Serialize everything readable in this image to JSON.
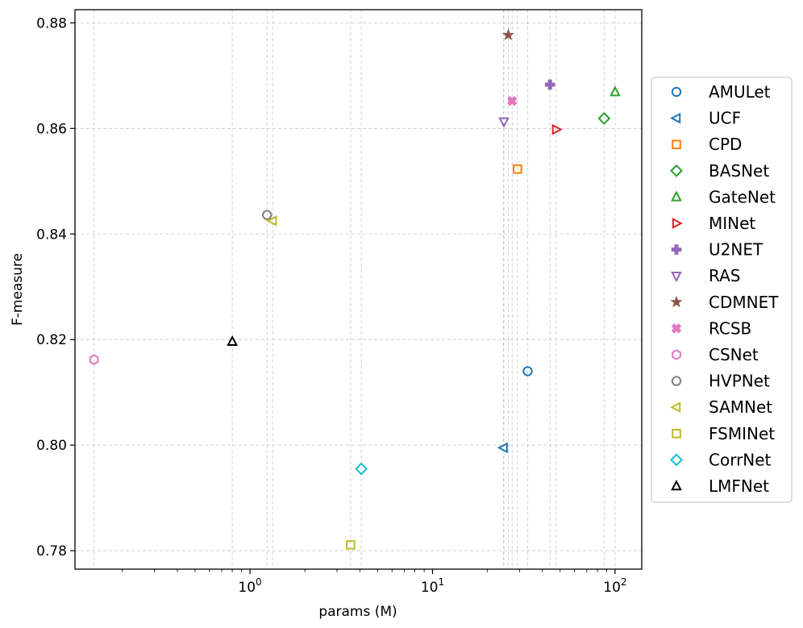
{
  "chart_data": {
    "type": "scatter",
    "title": "",
    "xlabel": "params (M)",
    "ylabel": "F-measure",
    "xscale": "log",
    "xlim": [
      0.11,
      140
    ],
    "ylim": [
      0.7765,
      0.8825
    ],
    "xticks": [
      {
        "value": 1,
        "base": "10",
        "exp": "0"
      },
      {
        "value": 10,
        "base": "10",
        "exp": "1"
      },
      {
        "value": 100,
        "base": "10",
        "exp": "2"
      }
    ],
    "yticks": [
      {
        "value": 0.78,
        "label": "0.78"
      },
      {
        "value": 0.8,
        "label": "0.80"
      },
      {
        "value": 0.82,
        "label": "0.82"
      },
      {
        "value": 0.84,
        "label": "0.84"
      },
      {
        "value": 0.86,
        "label": "0.86"
      },
      {
        "value": 0.88,
        "label": "0.88"
      }
    ],
    "grid": true,
    "legend_position": "right",
    "series": [
      {
        "name": "AMULet",
        "x": 33.2,
        "y": 0.814,
        "marker": "circle",
        "color": "#1f77b4"
      },
      {
        "name": "UCF",
        "x": 24.5,
        "y": 0.7995,
        "marker": "triangle-left",
        "color": "#1f77b4"
      },
      {
        "name": "CPD",
        "x": 29.2,
        "y": 0.8523,
        "marker": "square",
        "color": "#ff7f0e"
      },
      {
        "name": "BASNet",
        "x": 87.1,
        "y": 0.8619,
        "marker": "diamond",
        "color": "#2ca02c"
      },
      {
        "name": "GateNet",
        "x": 100.0,
        "y": 0.8669,
        "marker": "triangle-up",
        "color": "#2ca02c"
      },
      {
        "name": "MINet",
        "x": 47.6,
        "y": 0.8598,
        "marker": "triangle-right",
        "color": "#d62728"
      },
      {
        "name": "U2NET",
        "x": 44.0,
        "y": 0.8683,
        "marker": "plus",
        "color": "#9467bd"
      },
      {
        "name": "RAS",
        "x": 24.6,
        "y": 0.8613,
        "marker": "triangle-down",
        "color": "#9467bd"
      },
      {
        "name": "CDMNET",
        "x": 26.0,
        "y": 0.8777,
        "marker": "star",
        "color": "#8c564b"
      },
      {
        "name": "RCSB",
        "x": 27.3,
        "y": 0.8652,
        "marker": "x-plus",
        "color": "#e377c2"
      },
      {
        "name": "CSNet",
        "x": 0.14,
        "y": 0.8162,
        "marker": "hexagon",
        "color": "#e377c2"
      },
      {
        "name": "HVPNet",
        "x": 1.24,
        "y": 0.8436,
        "marker": "circle",
        "color": "#7f7f7f"
      },
      {
        "name": "SAMNet",
        "x": 1.33,
        "y": 0.8425,
        "marker": "triangle-left",
        "color": "#bcbd22"
      },
      {
        "name": "FSMINet",
        "x": 3.56,
        "y": 0.7811,
        "marker": "square",
        "color": "#bcbd22"
      },
      {
        "name": "CorrNet",
        "x": 4.07,
        "y": 0.7955,
        "marker": "diamond",
        "color": "#17becf"
      },
      {
        "name": "LMFNet",
        "x": 0.8,
        "y": 0.8196,
        "marker": "triangle-up",
        "color": "#000000"
      }
    ]
  }
}
